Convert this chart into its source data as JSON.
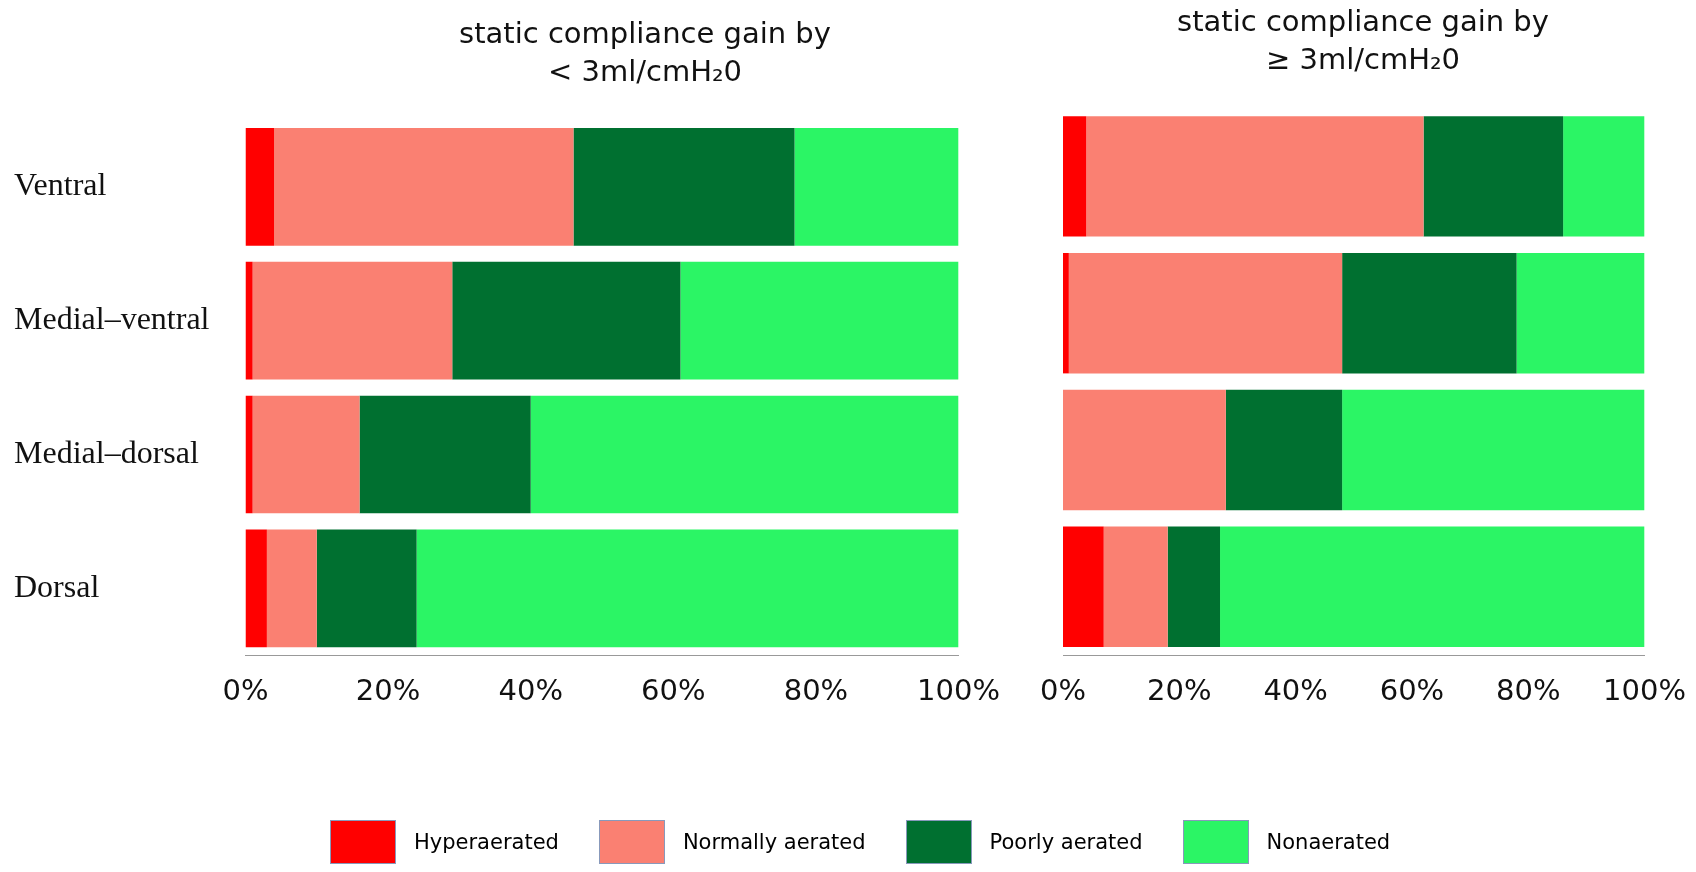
{
  "chart_data": [
    {
      "type": "bar",
      "title": "static compliance gain by",
      "subtitle": "< 3ml/cmH₂0",
      "orientation": "horizontal",
      "stacked": true,
      "categories": [
        "Ventral",
        "Medial–ventral",
        "Medial–dorsal",
        "Dorsal"
      ],
      "series": [
        {
          "name": "Hyperaerated",
          "color": "#ff0000",
          "values": [
            4,
            1,
            1,
            3
          ]
        },
        {
          "name": "Normally aerated",
          "color": "#fa8072",
          "values": [
            42,
            28,
            15,
            7
          ]
        },
        {
          "name": "Poorly aerated",
          "color": "#007030",
          "values": [
            31,
            32,
            24,
            14
          ]
        },
        {
          "name": "Nonaerated",
          "color": "#2bf565",
          "values": [
            23,
            39,
            60,
            76
          ]
        }
      ],
      "xlim": [
        0,
        100
      ],
      "xticks": [
        {
          "value": 0,
          "label": "0%"
        },
        {
          "value": 20,
          "label": "20%"
        },
        {
          "value": 40,
          "label": "40%"
        },
        {
          "value": 60,
          "label": "60%"
        },
        {
          "value": 80,
          "label": "80%"
        },
        {
          "value": 100,
          "label": "100%"
        }
      ],
      "grid": false,
      "legend": "bottom"
    },
    {
      "type": "bar",
      "title": "static compliance gain by",
      "subtitle": "≥ 3ml/cmH₂0",
      "orientation": "horizontal",
      "stacked": true,
      "categories": [
        null,
        null,
        null,
        null
      ],
      "series": [
        {
          "color": "#ff0000",
          "values": [
            4,
            1,
            0,
            7
          ]
        },
        {
          "color": "#fa8072",
          "values": [
            58,
            47,
            28,
            11
          ]
        },
        {
          "color": "#007030",
          "values": [
            24,
            30,
            20,
            9
          ]
        },
        {
          "color": "#2bf565",
          "values": [
            14,
            22,
            52,
            73
          ]
        }
      ],
      "xlim": [
        0,
        100
      ],
      "xticks": [
        {
          "value": 0,
          "label": "0%"
        },
        {
          "value": 20,
          "label": "20%"
        },
        {
          "value": 40,
          "label": "40%"
        },
        {
          "value": 60,
          "label": "60%"
        },
        {
          "value": 80,
          "label": "80%"
        },
        {
          "value": 100,
          "label": "100%"
        }
      ],
      "tick_labels": "x",
      "grid": false
    }
  ]
}
